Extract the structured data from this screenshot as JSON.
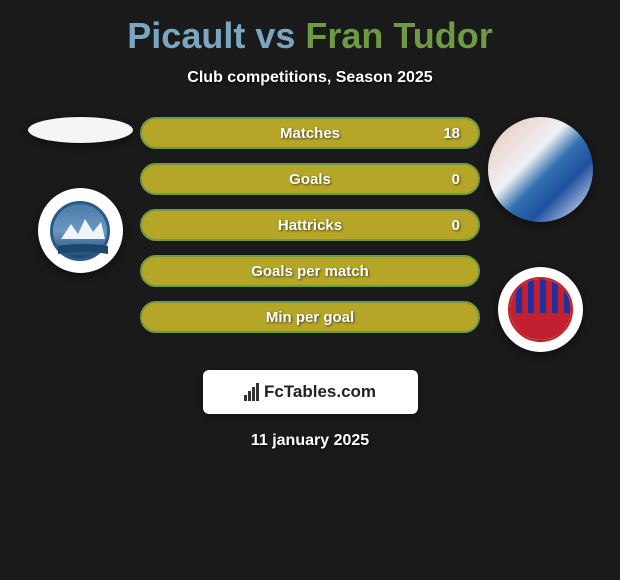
{
  "title": {
    "player1": "Picault",
    "player2": "Fran Tudor",
    "player1_color": "#7aa6c2",
    "player2_color": "#6d9a42"
  },
  "subtitle": "Club competitions, Season 2025",
  "date": "11 january 2025",
  "watermark": {
    "text": "FcTables.com"
  },
  "stats": [
    {
      "label": "Matches",
      "right_value": "18",
      "fill_color": "#b5a627",
      "border_color": "#6d9a42"
    },
    {
      "label": "Goals",
      "right_value": "0",
      "fill_color": "#b5a627",
      "border_color": "#6d9a42"
    },
    {
      "label": "Hattricks",
      "right_value": "0",
      "fill_color": "#b5a627",
      "border_color": "#6d9a42"
    },
    {
      "label": "Goals per match",
      "right_value": "",
      "fill_color": "#b5a627",
      "border_color": "#6d9a42"
    },
    {
      "label": "Min per goal",
      "right_value": "",
      "fill_color": "#b5a627",
      "border_color": "#6d9a42"
    }
  ],
  "colors": {
    "background": "#1a1a1a",
    "text": "#ffffff"
  }
}
